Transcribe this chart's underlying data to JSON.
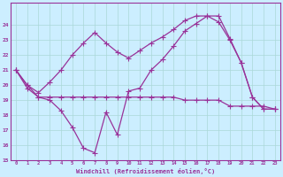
{
  "xlabel": "Windchill (Refroidissement éolien,°C)",
  "background_color": "#cceeff",
  "line_color": "#993399",
  "xlim": [
    -0.5,
    23.5
  ],
  "ylim": [
    15,
    25
  ],
  "yticks": [
    15,
    16,
    17,
    18,
    19,
    20,
    21,
    22,
    23,
    24
  ],
  "xticks": [
    0,
    1,
    2,
    3,
    4,
    5,
    6,
    7,
    8,
    9,
    10,
    11,
    12,
    13,
    14,
    15,
    16,
    17,
    18,
    19,
    20,
    21,
    22,
    23
  ],
  "series1_x": [
    0,
    1,
    2,
    3,
    4,
    5,
    6,
    7,
    8,
    9,
    10,
    11,
    12,
    13,
    14,
    15,
    16,
    17,
    18,
    19,
    20,
    21,
    22,
    23
  ],
  "series1_y": [
    21.0,
    20.0,
    19.2,
    19.0,
    18.3,
    17.2,
    15.8,
    15.5,
    18.2,
    16.7,
    19.6,
    19.8,
    21.0,
    21.7,
    22.6,
    23.6,
    24.1,
    24.6,
    24.6,
    23.1,
    21.5,
    19.2,
    18.4,
    18.4
  ],
  "series2_x": [
    0,
    1,
    2,
    3,
    4,
    5,
    6,
    7,
    8,
    9,
    10,
    11,
    12,
    13,
    14,
    15,
    16,
    17,
    18,
    19,
    20,
    21,
    22,
    23
  ],
  "series2_y": [
    21.0,
    19.8,
    19.2,
    19.2,
    19.2,
    19.2,
    19.2,
    19.2,
    19.2,
    19.2,
    19.2,
    19.2,
    19.2,
    19.2,
    19.2,
    19.0,
    19.0,
    19.0,
    19.0,
    18.6,
    18.6,
    18.6,
    18.6,
    18.4
  ],
  "series3_x": [
    0,
    1,
    2,
    3,
    4,
    5,
    6,
    7,
    8,
    9,
    10,
    11,
    12,
    13,
    14,
    15,
    16,
    17,
    18,
    19,
    20,
    21,
    22,
    23
  ],
  "series3_y": [
    21.0,
    20.0,
    19.5,
    20.2,
    21.0,
    22.0,
    22.8,
    23.5,
    22.8,
    22.2,
    21.8,
    22.3,
    22.8,
    23.2,
    23.7,
    24.3,
    24.6,
    24.6,
    24.2,
    23.0,
    21.5,
    19.2,
    18.4,
    18.4
  ]
}
